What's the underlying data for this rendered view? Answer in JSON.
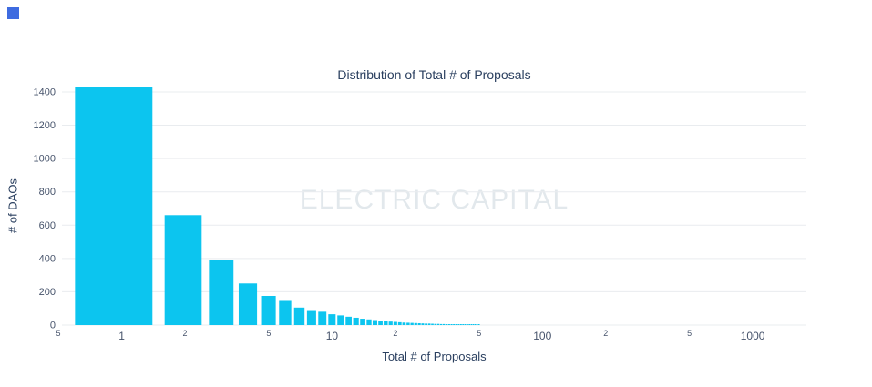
{
  "page": {
    "background": "#ffffff",
    "corner_accent_color": "#3e6be0"
  },
  "chart_data": {
    "type": "bar",
    "title": "Distribution of Total # of Proposals",
    "xlabel": "Total # of Proposals",
    "ylabel": "# of DAOs",
    "watermark": "ELECTRIC CAPITAL",
    "bar_color": "#0cc5ef",
    "grid": "horizontal",
    "grid_color": "#e9ecef",
    "tick_color": "#46536b",
    "legend": "none",
    "x_scale": "log",
    "x_range": [
      0.52,
      1800
    ],
    "ylim": [
      0,
      1460
    ],
    "y_ticks": [
      0,
      200,
      400,
      600,
      800,
      1000,
      1200,
      1400
    ],
    "x_ticks": [
      {
        "value": 0.5,
        "label": "5",
        "minor": true
      },
      {
        "value": 1,
        "label": "1",
        "minor": false
      },
      {
        "value": 2,
        "label": "2",
        "minor": true
      },
      {
        "value": 5,
        "label": "5",
        "minor": true
      },
      {
        "value": 10,
        "label": "10",
        "minor": false
      },
      {
        "value": 20,
        "label": "2",
        "minor": true
      },
      {
        "value": 50,
        "label": "5",
        "minor": true
      },
      {
        "value": 100,
        "label": "100",
        "minor": false
      },
      {
        "value": 200,
        "label": "2",
        "minor": true
      },
      {
        "value": 500,
        "label": "5",
        "minor": true
      },
      {
        "value": 1000,
        "label": "1000",
        "minor": false
      }
    ],
    "x": [
      1,
      2,
      3,
      4,
      5,
      6,
      7,
      8,
      9,
      10,
      11,
      12,
      13,
      14,
      15,
      16,
      17,
      18,
      19,
      20,
      21,
      22,
      23,
      24,
      25,
      26,
      27,
      28,
      29,
      30,
      31,
      32,
      33,
      34,
      35,
      36,
      37,
      38,
      39,
      40,
      41,
      42,
      43,
      44,
      45,
      46,
      47,
      48,
      49,
      50
    ],
    "values": [
      1430,
      660,
      390,
      250,
      175,
      145,
      105,
      90,
      80,
      65,
      58,
      50,
      44,
      38,
      34,
      30,
      27,
      24,
      21,
      19,
      17,
      15,
      14,
      13,
      12,
      11,
      10,
      9,
      9,
      8,
      7,
      7,
      6,
      6,
      5,
      5,
      5,
      4,
      4,
      4,
      3,
      3,
      3,
      3,
      2,
      2,
      2,
      2,
      2,
      2
    ]
  }
}
